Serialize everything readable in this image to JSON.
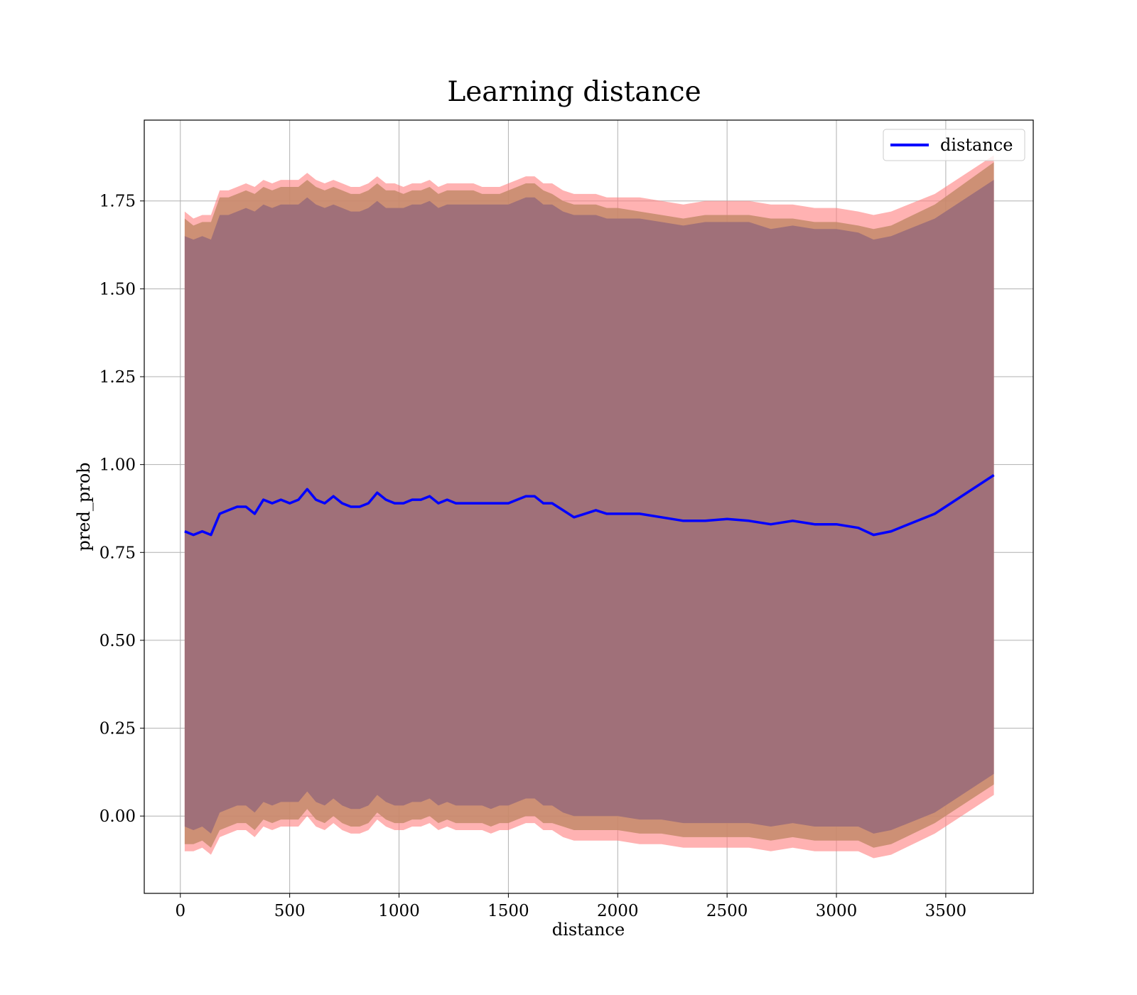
{
  "chart_data": {
    "type": "line",
    "title": "Learning distance",
    "xlabel": "distance",
    "ylabel": "pred_prob",
    "xlim": [
      -165,
      3900
    ],
    "ylim": [
      -0.22,
      1.98
    ],
    "x_ticks": [
      0,
      500,
      1000,
      1500,
      2000,
      2500,
      3000,
      3500
    ],
    "x_tick_labels": [
      "0",
      "500",
      "1000",
      "1500",
      "2000",
      "2500",
      "3000",
      "3500"
    ],
    "y_ticks": [
      0.0,
      0.25,
      0.5,
      0.75,
      1.0,
      1.25,
      1.5,
      1.75
    ],
    "y_tick_labels": [
      "0.00",
      "0.25",
      "0.50",
      "0.75",
      "1.00",
      "1.25",
      "1.50",
      "1.75"
    ],
    "grid": true,
    "legend": {
      "position": "top-right",
      "entries": [
        "distance"
      ]
    },
    "colors": {
      "line": "#0000ff",
      "outer_band": "#ff7f7f",
      "middle_band": "#c48a6a",
      "inner_band": "#a07079"
    },
    "x": [
      20,
      60,
      100,
      140,
      180,
      220,
      260,
      300,
      340,
      380,
      420,
      460,
      500,
      540,
      580,
      620,
      660,
      700,
      740,
      780,
      820,
      860,
      900,
      940,
      980,
      1020,
      1060,
      1100,
      1140,
      1180,
      1220,
      1260,
      1300,
      1340,
      1380,
      1420,
      1460,
      1500,
      1540,
      1580,
      1620,
      1660,
      1700,
      1750,
      1800,
      1850,
      1900,
      1950,
      2000,
      2100,
      2200,
      2300,
      2400,
      2500,
      2600,
      2700,
      2800,
      2900,
      3000,
      3100,
      3170,
      3250,
      3450,
      3720
    ],
    "series": [
      {
        "name": "distance",
        "values": [
          0.81,
          0.8,
          0.81,
          0.8,
          0.86,
          0.87,
          0.88,
          0.88,
          0.86,
          0.9,
          0.89,
          0.9,
          0.89,
          0.9,
          0.93,
          0.9,
          0.89,
          0.91,
          0.89,
          0.88,
          0.88,
          0.89,
          0.92,
          0.9,
          0.89,
          0.89,
          0.9,
          0.9,
          0.91,
          0.89,
          0.9,
          0.89,
          0.89,
          0.89,
          0.89,
          0.89,
          0.89,
          0.89,
          0.9,
          0.91,
          0.91,
          0.89,
          0.89,
          0.87,
          0.85,
          0.86,
          0.87,
          0.86,
          0.86,
          0.86,
          0.85,
          0.84,
          0.84,
          0.845,
          0.84,
          0.83,
          0.84,
          0.83,
          0.83,
          0.82,
          0.8,
          0.81,
          0.86,
          0.97
        ]
      }
    ],
    "bands": [
      {
        "name": "outer",
        "upper": [
          1.72,
          1.7,
          1.71,
          1.71,
          1.78,
          1.78,
          1.79,
          1.8,
          1.79,
          1.81,
          1.8,
          1.81,
          1.81,
          1.81,
          1.83,
          1.81,
          1.8,
          1.81,
          1.8,
          1.79,
          1.79,
          1.8,
          1.82,
          1.8,
          1.8,
          1.79,
          1.8,
          1.8,
          1.81,
          1.79,
          1.8,
          1.8,
          1.8,
          1.8,
          1.79,
          1.79,
          1.79,
          1.8,
          1.81,
          1.82,
          1.82,
          1.8,
          1.8,
          1.78,
          1.77,
          1.77,
          1.77,
          1.76,
          1.76,
          1.76,
          1.75,
          1.74,
          1.75,
          1.75,
          1.75,
          1.74,
          1.74,
          1.73,
          1.73,
          1.72,
          1.71,
          1.72,
          1.77,
          1.88
        ],
        "lower": [
          -0.1,
          -0.1,
          -0.09,
          -0.11,
          -0.06,
          -0.05,
          -0.04,
          -0.04,
          -0.06,
          -0.03,
          -0.04,
          -0.03,
          -0.03,
          -0.03,
          0.0,
          -0.03,
          -0.04,
          -0.02,
          -0.04,
          -0.05,
          -0.05,
          -0.04,
          -0.01,
          -0.03,
          -0.04,
          -0.04,
          -0.03,
          -0.03,
          -0.02,
          -0.04,
          -0.03,
          -0.04,
          -0.04,
          -0.04,
          -0.04,
          -0.05,
          -0.04,
          -0.04,
          -0.03,
          -0.02,
          -0.02,
          -0.04,
          -0.04,
          -0.06,
          -0.07,
          -0.07,
          -0.07,
          -0.07,
          -0.07,
          -0.08,
          -0.08,
          -0.09,
          -0.09,
          -0.09,
          -0.09,
          -0.1,
          -0.09,
          -0.1,
          -0.1,
          -0.1,
          -0.12,
          -0.11,
          -0.05,
          0.06
        ]
      },
      {
        "name": "middle",
        "upper": [
          1.7,
          1.68,
          1.69,
          1.69,
          1.76,
          1.76,
          1.77,
          1.78,
          1.77,
          1.79,
          1.78,
          1.79,
          1.79,
          1.79,
          1.81,
          1.79,
          1.78,
          1.79,
          1.78,
          1.77,
          1.77,
          1.78,
          1.8,
          1.78,
          1.78,
          1.77,
          1.78,
          1.78,
          1.79,
          1.77,
          1.78,
          1.78,
          1.78,
          1.78,
          1.77,
          1.77,
          1.77,
          1.78,
          1.79,
          1.8,
          1.8,
          1.78,
          1.77,
          1.75,
          1.74,
          1.74,
          1.74,
          1.73,
          1.73,
          1.72,
          1.71,
          1.7,
          1.71,
          1.71,
          1.71,
          1.7,
          1.7,
          1.69,
          1.69,
          1.68,
          1.67,
          1.68,
          1.74,
          1.86
        ],
        "lower": [
          -0.08,
          -0.08,
          -0.07,
          -0.09,
          -0.04,
          -0.03,
          -0.02,
          -0.02,
          -0.04,
          -0.01,
          -0.02,
          -0.01,
          -0.01,
          -0.01,
          0.02,
          -0.01,
          -0.02,
          0.0,
          -0.02,
          -0.03,
          -0.03,
          -0.02,
          0.01,
          -0.01,
          -0.02,
          -0.02,
          -0.01,
          -0.01,
          0.0,
          -0.02,
          -0.01,
          -0.02,
          -0.02,
          -0.02,
          -0.02,
          -0.03,
          -0.02,
          -0.02,
          -0.01,
          0.0,
          0.0,
          -0.02,
          -0.02,
          -0.03,
          -0.04,
          -0.04,
          -0.04,
          -0.04,
          -0.04,
          -0.05,
          -0.05,
          -0.06,
          -0.06,
          -0.06,
          -0.06,
          -0.07,
          -0.06,
          -0.07,
          -0.07,
          -0.07,
          -0.09,
          -0.08,
          -0.02,
          0.09
        ]
      },
      {
        "name": "inner",
        "upper": [
          1.65,
          1.64,
          1.65,
          1.64,
          1.71,
          1.71,
          1.72,
          1.73,
          1.72,
          1.74,
          1.73,
          1.74,
          1.74,
          1.74,
          1.76,
          1.74,
          1.73,
          1.74,
          1.73,
          1.72,
          1.72,
          1.73,
          1.75,
          1.73,
          1.73,
          1.73,
          1.74,
          1.74,
          1.75,
          1.73,
          1.74,
          1.74,
          1.74,
          1.74,
          1.74,
          1.74,
          1.74,
          1.74,
          1.75,
          1.76,
          1.76,
          1.74,
          1.74,
          1.72,
          1.71,
          1.71,
          1.71,
          1.7,
          1.7,
          1.7,
          1.69,
          1.68,
          1.69,
          1.69,
          1.69,
          1.67,
          1.68,
          1.67,
          1.67,
          1.66,
          1.64,
          1.65,
          1.7,
          1.81
        ],
        "lower": [
          -0.03,
          -0.04,
          -0.03,
          -0.05,
          0.01,
          0.02,
          0.03,
          0.03,
          0.01,
          0.04,
          0.03,
          0.04,
          0.04,
          0.04,
          0.07,
          0.04,
          0.03,
          0.05,
          0.03,
          0.02,
          0.02,
          0.03,
          0.06,
          0.04,
          0.03,
          0.03,
          0.04,
          0.04,
          0.05,
          0.03,
          0.04,
          0.03,
          0.03,
          0.03,
          0.03,
          0.02,
          0.03,
          0.03,
          0.04,
          0.05,
          0.05,
          0.03,
          0.03,
          0.01,
          0.0,
          0.0,
          0.0,
          0.0,
          0.0,
          -0.01,
          -0.01,
          -0.02,
          -0.02,
          -0.02,
          -0.02,
          -0.03,
          -0.02,
          -0.03,
          -0.03,
          -0.03,
          -0.05,
          -0.04,
          0.01,
          0.12
        ]
      }
    ]
  }
}
